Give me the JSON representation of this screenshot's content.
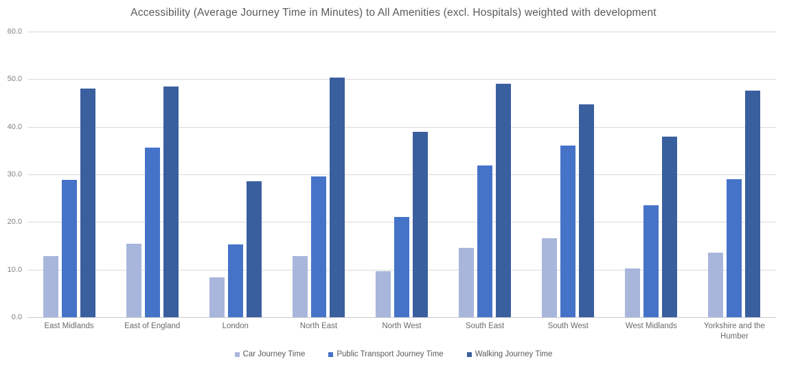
{
  "chart_data": {
    "type": "bar",
    "title": "Accessibility (Average Journey Time in Minutes) to All Amenities (excl. Hospitals) weighted with development",
    "categories": [
      "East Midlands",
      "East of England",
      "London",
      "North East",
      "North West",
      "South East",
      "South West",
      "West Midlands",
      "Yorkshire and the Humber"
    ],
    "series": [
      {
        "name": "Car Journey Time",
        "color": "#a9b6dc",
        "values": [
          12.8,
          15.4,
          8.3,
          12.9,
          9.7,
          14.5,
          16.6,
          10.3,
          13.5
        ]
      },
      {
        "name": "Public Transport Journey Time",
        "color": "#4573c8",
        "values": [
          28.9,
          35.6,
          15.3,
          29.5,
          21.1,
          31.9,
          36.1,
          23.5,
          29.0
        ]
      },
      {
        "name": "Walking Journey Time",
        "color": "#3a5f9f",
        "values": [
          48.1,
          48.4,
          28.6,
          50.4,
          39.0,
          49.0,
          44.7,
          38.0,
          47.6
        ]
      }
    ],
    "xlabel": "",
    "ylabel": "",
    "ylim": [
      0,
      60
    ],
    "ytick_step": 10,
    "ytick_labels": [
      "0.0",
      "10.0",
      "20.0",
      "30.0",
      "40.0",
      "50.0",
      "60.0"
    ],
    "grid": true,
    "legend_position": "bottom"
  },
  "colors": {
    "title_text": "#595959",
    "axis_text": "#7f7f7f",
    "gridline": "#dadada",
    "background": "#ffffff"
  }
}
